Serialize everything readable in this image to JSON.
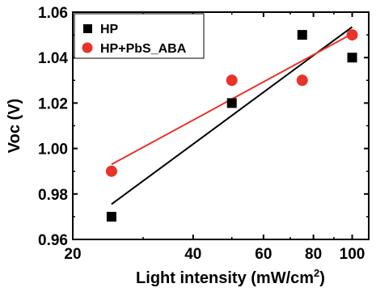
{
  "chart_data": {
    "type": "scatter",
    "x_scale": "log",
    "xlim": [
      20,
      110
    ],
    "ylim": [
      0.96,
      1.06
    ],
    "x_ticks": [
      20,
      40,
      60,
      80,
      100
    ],
    "x_tick_labels": [
      "20",
      "40",
      "60",
      "80",
      "100"
    ],
    "y_ticks": [
      0.96,
      0.98,
      1.0,
      1.02,
      1.04,
      1.06
    ],
    "y_tick_labels": [
      "0.96",
      "0.98",
      "1.00",
      "1.02",
      "1.04",
      "1.06"
    ],
    "ylabel": "Voc (V)",
    "xlabel_main": "Light intensity (mW/cm",
    "xlabel_sup": "2",
    "xlabel_close": ")",
    "grid": false,
    "legend_position": "top-left",
    "series": [
      {
        "name": "HP",
        "marker": "square",
        "color": "#000000",
        "x": [
          25,
          50,
          75,
          100
        ],
        "y": [
          0.97,
          1.02,
          1.05,
          1.04
        ],
        "fit": {
          "x": [
            25,
            100
          ],
          "y": [
            0.9755,
            1.0535
          ]
        }
      },
      {
        "name": "HP+PbS_ABA",
        "marker": "circle",
        "color": "#e8332a",
        "x": [
          25,
          50,
          75,
          100
        ],
        "y": [
          0.99,
          1.03,
          1.03,
          1.05
        ],
        "fit": {
          "x": [
            25,
            100
          ],
          "y": [
            0.993,
            1.0505
          ]
        }
      }
    ]
  }
}
